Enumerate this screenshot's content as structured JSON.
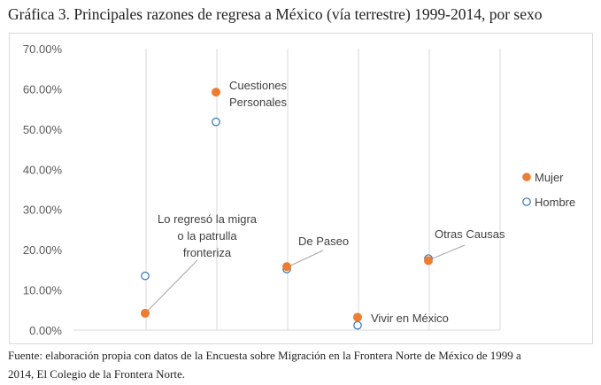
{
  "chart_data": {
    "type": "scatter",
    "title": "Gráfica 3. Principales razones de regresa a México (vía terrestre) 1999-2014, por sexo",
    "xlabel": "",
    "ylabel": "",
    "ylim": [
      0,
      0.7
    ],
    "yticks": [
      "0.00%",
      "10.00%",
      "20.00%",
      "30.00%",
      "40.00%",
      "50.00%",
      "60.00%",
      "70.00%"
    ],
    "categories": [
      "Lo regresó la migra o la patrulla fronteriza",
      "Cuestiones Personales",
      "De Paseo",
      "Vivir en México",
      "Otras Causas"
    ],
    "category_labels": [
      [
        "Lo regresó la migra",
        "o la patrulla",
        "fronteriza"
      ],
      [
        "Cuestiones",
        "Personales"
      ],
      [
        "De Paseo"
      ],
      [
        "Vivir en México"
      ],
      [
        "Otras Causas"
      ]
    ],
    "series": [
      {
        "name": "Mujer",
        "values": [
          0.042,
          0.592,
          0.158,
          0.032,
          0.173
        ]
      },
      {
        "name": "Hombre",
        "values": [
          0.135,
          0.518,
          0.152,
          0.012,
          0.178
        ]
      }
    ],
    "legend_position": "right",
    "grid": "vertical",
    "colors": {
      "Mujer": "#ED7D31",
      "Hombre": "#2E75B6"
    }
  },
  "source": {
    "line1": "Fuente: elaboración propia con datos de la Encuesta sobre Migración en la Frontera Norte de México de 1999 a",
    "line2": "2014, El Colegio de la Frontera Norte."
  }
}
